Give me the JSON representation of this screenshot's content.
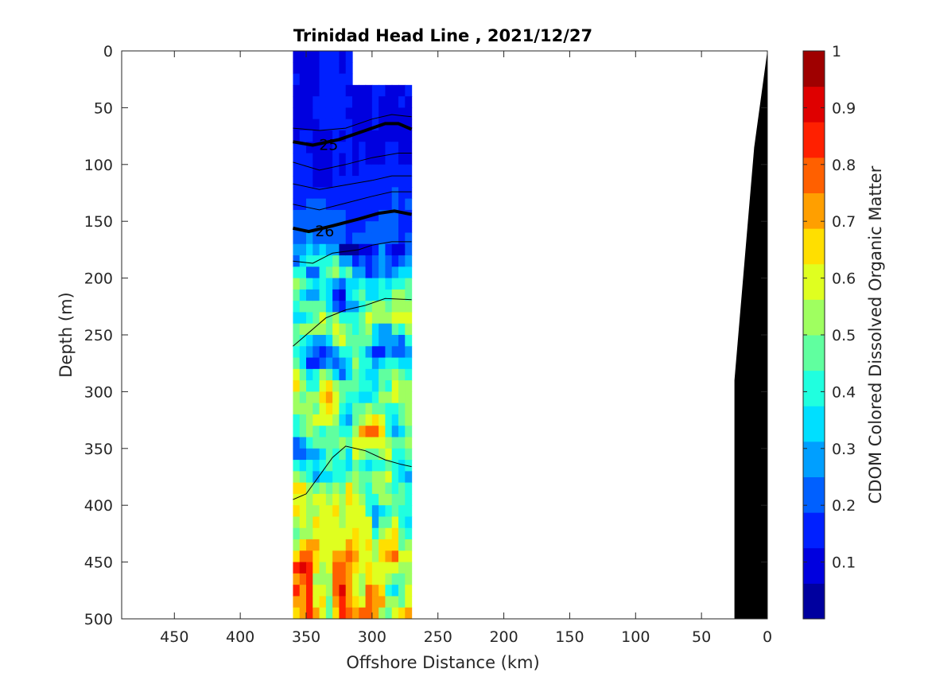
{
  "chart_data": {
    "type": "heatmap",
    "title": "Trinidad Head Line , 2021/12/27",
    "xlabel": "Offshore Distance (km)",
    "ylabel": "Depth (m)",
    "colorbar_label": "CDOM Colored Dissolved Organic Matter",
    "xlim": [
      490,
      0
    ],
    "ylim": [
      0,
      500
    ],
    "clim": [
      0,
      1
    ],
    "x_ticks": [
      450,
      400,
      350,
      300,
      250,
      200,
      150,
      100,
      50,
      0
    ],
    "y_ticks": [
      0,
      50,
      100,
      150,
      200,
      250,
      300,
      350,
      400,
      450,
      500
    ],
    "colorbar_ticks": [
      0.1,
      0.2,
      0.3,
      0.4,
      0.5,
      0.6,
      0.7,
      0.8,
      0.9,
      1
    ],
    "colormap": "jet",
    "grid": false,
    "data_extent": {
      "x": [
        360,
        270
      ],
      "depth": [
        0,
        500
      ]
    },
    "cdom_profile": [
      {
        "depth": 0,
        "value": 0.12
      },
      {
        "depth": 50,
        "value": 0.12
      },
      {
        "depth": 100,
        "value": 0.13
      },
      {
        "depth": 150,
        "value": 0.2
      },
      {
        "depth": 200,
        "value": 0.28
      },
      {
        "depth": 250,
        "value": 0.35
      },
      {
        "depth": 300,
        "value": 0.45
      },
      {
        "depth": 350,
        "value": 0.5
      },
      {
        "depth": 400,
        "value": 0.55
      },
      {
        "depth": 450,
        "value": 0.6
      },
      {
        "depth": 500,
        "value": 0.62
      }
    ],
    "density_contours": [
      {
        "label": "",
        "bold": false,
        "points": [
          [
            360,
            68
          ],
          [
            340,
            70
          ],
          [
            320,
            68
          ],
          [
            300,
            60
          ],
          [
            285,
            56
          ],
          [
            270,
            58
          ]
        ]
      },
      {
        "label": "25",
        "bold": true,
        "points": [
          [
            360,
            80
          ],
          [
            345,
            83
          ],
          [
            325,
            78
          ],
          [
            305,
            70
          ],
          [
            290,
            64
          ],
          [
            280,
            64
          ],
          [
            270,
            69
          ]
        ]
      },
      {
        "label": "",
        "bold": false,
        "points": [
          [
            360,
            98
          ],
          [
            340,
            105
          ],
          [
            320,
            100
          ],
          [
            300,
            94
          ],
          [
            280,
            90
          ],
          [
            270,
            90
          ]
        ]
      },
      {
        "label": "",
        "bold": false,
        "points": [
          [
            360,
            117
          ],
          [
            340,
            122
          ],
          [
            320,
            118
          ],
          [
            300,
            114
          ],
          [
            285,
            110
          ],
          [
            270,
            110
          ]
        ]
      },
      {
        "label": "",
        "bold": false,
        "points": [
          [
            360,
            135
          ],
          [
            340,
            140
          ],
          [
            320,
            134
          ],
          [
            300,
            128
          ],
          [
            285,
            124
          ],
          [
            270,
            124
          ]
        ]
      },
      {
        "label": "26",
        "bold": true,
        "points": [
          [
            360,
            156
          ],
          [
            348,
            159
          ],
          [
            330,
            154
          ],
          [
            310,
            148
          ],
          [
            295,
            143
          ],
          [
            283,
            141
          ],
          [
            270,
            144
          ]
        ]
      },
      {
        "label": "",
        "bold": false,
        "points": [
          [
            360,
            185
          ],
          [
            345,
            187
          ],
          [
            330,
            178
          ],
          [
            310,
            175
          ],
          [
            300,
            171
          ],
          [
            285,
            168
          ],
          [
            270,
            168
          ]
        ]
      },
      {
        "label": "",
        "bold": false,
        "points": [
          [
            360,
            260
          ],
          [
            345,
            245
          ],
          [
            335,
            235
          ],
          [
            320,
            228
          ],
          [
            305,
            224
          ],
          [
            290,
            218
          ],
          [
            270,
            219
          ]
        ]
      },
      {
        "label": "",
        "bold": false,
        "points": [
          [
            360,
            395
          ],
          [
            350,
            390
          ],
          [
            340,
            374
          ],
          [
            330,
            358
          ],
          [
            320,
            348
          ],
          [
            305,
            352
          ],
          [
            290,
            360
          ],
          [
            278,
            364
          ],
          [
            270,
            366
          ]
        ]
      }
    ],
    "bathymetry": [
      [
        0,
        0
      ],
      [
        10,
        85
      ],
      [
        25,
        290
      ],
      [
        25,
        500
      ],
      [
        0,
        500
      ]
    ]
  }
}
